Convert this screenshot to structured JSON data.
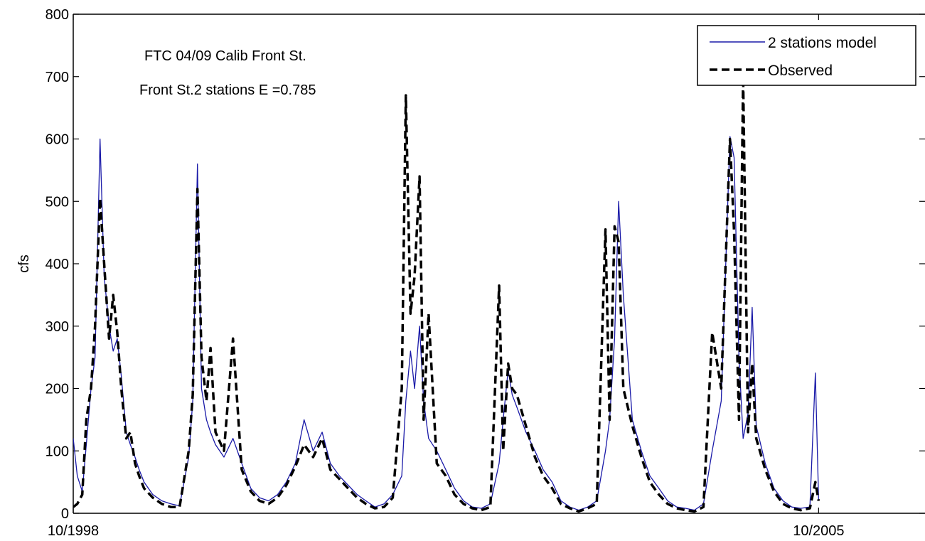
{
  "chart_data": {
    "type": "line",
    "title": "",
    "xlabel": "",
    "ylabel": "cfs",
    "ylim": [
      0,
      800
    ],
    "y_ticks": [
      0,
      100,
      200,
      300,
      400,
      500,
      600,
      700,
      800
    ],
    "x_ticks": [
      {
        "value": "1998-10-01",
        "label": "10/1998"
      },
      {
        "value": "2005-10-01",
        "label": "10/2005"
      }
    ],
    "xlim": [
      "1998-10-01",
      "2006-10-01"
    ],
    "grid": false,
    "legend_position": "top-right",
    "annotations": [
      "FTC 04/09 Calib Front St.",
      "Front St.2 stations E =0.785"
    ],
    "series": [
      {
        "name": "2 stations model",
        "color": "#1a1aa8",
        "style": "solid",
        "points": [
          [
            "1998-10-01",
            120
          ],
          [
            "1998-10-15",
            60
          ],
          [
            "1998-11-01",
            35
          ],
          [
            "1998-11-15",
            110
          ],
          [
            "1998-12-01",
            200
          ],
          [
            "1998-12-15",
            250
          ],
          [
            "1999-01-01",
            600
          ],
          [
            "1999-01-15",
            380
          ],
          [
            "1999-02-01",
            300
          ],
          [
            "1999-02-15",
            260
          ],
          [
            "1999-03-01",
            280
          ],
          [
            "1999-03-15",
            220
          ],
          [
            "1999-04-01",
            130
          ],
          [
            "1999-04-15",
            110
          ],
          [
            "1999-05-01",
            90
          ],
          [
            "1999-05-15",
            70
          ],
          [
            "1999-06-01",
            50
          ],
          [
            "1999-07-01",
            30
          ],
          [
            "1999-08-01",
            20
          ],
          [
            "1999-09-01",
            15
          ],
          [
            "1999-10-01",
            12
          ],
          [
            "1999-11-01",
            90
          ],
          [
            "1999-11-15",
            180
          ],
          [
            "1999-12-01",
            560
          ],
          [
            "1999-12-15",
            200
          ],
          [
            "2000-01-01",
            150
          ],
          [
            "2000-01-15",
            130
          ],
          [
            "2000-02-01",
            110
          ],
          [
            "2000-03-01",
            90
          ],
          [
            "2000-04-01",
            120
          ],
          [
            "2000-05-01",
            80
          ],
          [
            "2000-06-01",
            40
          ],
          [
            "2000-07-01",
            25
          ],
          [
            "2000-08-01",
            20
          ],
          [
            "2000-09-01",
            30
          ],
          [
            "2000-10-01",
            50
          ],
          [
            "2000-11-01",
            80
          ],
          [
            "2000-12-01",
            150
          ],
          [
            "2001-01-01",
            100
          ],
          [
            "2001-02-01",
            130
          ],
          [
            "2001-03-01",
            80
          ],
          [
            "2001-04-01",
            60
          ],
          [
            "2001-05-01",
            45
          ],
          [
            "2001-06-01",
            30
          ],
          [
            "2001-07-01",
            20
          ],
          [
            "2001-08-01",
            10
          ],
          [
            "2001-09-01",
            15
          ],
          [
            "2001-10-01",
            30
          ],
          [
            "2001-11-01",
            60
          ],
          [
            "2001-11-15",
            180
          ],
          [
            "2001-12-01",
            260
          ],
          [
            "2001-12-15",
            200
          ],
          [
            "2002-01-01",
            300
          ],
          [
            "2002-01-15",
            180
          ],
          [
            "2002-02-01",
            120
          ],
          [
            "2002-03-01",
            100
          ],
          [
            "2002-04-01",
            70
          ],
          [
            "2002-05-01",
            40
          ],
          [
            "2002-06-01",
            20
          ],
          [
            "2002-07-01",
            10
          ],
          [
            "2002-08-01",
            8
          ],
          [
            "2002-09-01",
            15
          ],
          [
            "2002-10-01",
            80
          ],
          [
            "2002-10-15",
            150
          ],
          [
            "2002-11-01",
            230
          ],
          [
            "2002-11-15",
            190
          ],
          [
            "2002-12-01",
            170
          ],
          [
            "2003-01-01",
            130
          ],
          [
            "2003-02-01",
            100
          ],
          [
            "2003-03-01",
            70
          ],
          [
            "2003-04-01",
            50
          ],
          [
            "2003-05-01",
            20
          ],
          [
            "2003-06-01",
            10
          ],
          [
            "2003-07-01",
            5
          ],
          [
            "2003-08-01",
            10
          ],
          [
            "2003-09-01",
            20
          ],
          [
            "2003-10-01",
            100
          ],
          [
            "2003-10-15",
            150
          ],
          [
            "2003-11-01",
            280
          ],
          [
            "2003-11-15",
            500
          ],
          [
            "2003-12-01",
            350
          ],
          [
            "2004-01-01",
            150
          ],
          [
            "2004-02-01",
            100
          ],
          [
            "2004-03-01",
            60
          ],
          [
            "2004-04-01",
            40
          ],
          [
            "2004-05-01",
            20
          ],
          [
            "2004-06-01",
            10
          ],
          [
            "2004-07-01",
            8
          ],
          [
            "2004-08-01",
            5
          ],
          [
            "2004-09-01",
            15
          ],
          [
            "2004-10-01",
            100
          ],
          [
            "2004-11-01",
            180
          ],
          [
            "2004-12-01",
            604
          ],
          [
            "2004-12-15",
            570
          ],
          [
            "2005-01-01",
            250
          ],
          [
            "2005-01-15",
            120
          ],
          [
            "2005-02-01",
            160
          ],
          [
            "2005-02-15",
            330
          ],
          [
            "2005-03-01",
            140
          ],
          [
            "2005-04-01",
            80
          ],
          [
            "2005-05-01",
            40
          ],
          [
            "2005-06-01",
            20
          ],
          [
            "2005-07-01",
            10
          ],
          [
            "2005-08-01",
            8
          ],
          [
            "2005-09-01",
            10
          ],
          [
            "2005-09-20",
            225
          ],
          [
            "2005-10-01",
            20
          ]
        ]
      },
      {
        "name": "Observed",
        "color": "#000000",
        "style": "dashed",
        "points": [
          [
            "1998-10-01",
            10
          ],
          [
            "1998-10-15",
            15
          ],
          [
            "1998-11-01",
            30
          ],
          [
            "1998-11-15",
            150
          ],
          [
            "1998-12-01",
            200
          ],
          [
            "1998-12-15",
            300
          ],
          [
            "1999-01-01",
            505
          ],
          [
            "1999-01-15",
            400
          ],
          [
            "1999-02-01",
            280
          ],
          [
            "1999-02-15",
            350
          ],
          [
            "1999-03-01",
            290
          ],
          [
            "1999-03-15",
            200
          ],
          [
            "1999-04-01",
            120
          ],
          [
            "1999-04-15",
            130
          ],
          [
            "1999-05-01",
            80
          ],
          [
            "1999-05-15",
            60
          ],
          [
            "1999-06-01",
            40
          ],
          [
            "1999-07-01",
            25
          ],
          [
            "1999-08-01",
            15
          ],
          [
            "1999-09-01",
            10
          ],
          [
            "1999-10-01",
            10
          ],
          [
            "1999-11-01",
            100
          ],
          [
            "1999-11-15",
            190
          ],
          [
            "1999-12-01",
            520
          ],
          [
            "1999-12-15",
            250
          ],
          [
            "2000-01-01",
            180
          ],
          [
            "2000-01-15",
            265
          ],
          [
            "2000-02-01",
            130
          ],
          [
            "2000-03-01",
            100
          ],
          [
            "2000-04-01",
            280
          ],
          [
            "2000-05-01",
            70
          ],
          [
            "2000-06-01",
            35
          ],
          [
            "2000-07-01",
            20
          ],
          [
            "2000-08-01",
            15
          ],
          [
            "2000-09-01",
            25
          ],
          [
            "2000-10-01",
            45
          ],
          [
            "2000-11-01",
            75
          ],
          [
            "2000-12-01",
            110
          ],
          [
            "2001-01-01",
            90
          ],
          [
            "2001-02-01",
            120
          ],
          [
            "2001-03-01",
            70
          ],
          [
            "2001-04-01",
            55
          ],
          [
            "2001-05-01",
            40
          ],
          [
            "2001-06-01",
            25
          ],
          [
            "2001-07-01",
            15
          ],
          [
            "2001-08-01",
            8
          ],
          [
            "2001-09-01",
            10
          ],
          [
            "2001-10-01",
            25
          ],
          [
            "2001-11-01",
            200
          ],
          [
            "2001-11-15",
            670
          ],
          [
            "2001-12-01",
            320
          ],
          [
            "2001-12-15",
            380
          ],
          [
            "2002-01-01",
            540
          ],
          [
            "2002-01-15",
            150
          ],
          [
            "2002-02-01",
            320
          ],
          [
            "2002-03-01",
            80
          ],
          [
            "2002-04-01",
            60
          ],
          [
            "2002-05-01",
            30
          ],
          [
            "2002-06-01",
            15
          ],
          [
            "2002-07-01",
            8
          ],
          [
            "2002-08-01",
            5
          ],
          [
            "2002-09-01",
            10
          ],
          [
            "2002-10-01",
            365
          ],
          [
            "2002-10-15",
            100
          ],
          [
            "2002-11-01",
            240
          ],
          [
            "2002-11-15",
            200
          ],
          [
            "2002-12-01",
            190
          ],
          [
            "2003-01-01",
            140
          ],
          [
            "2003-02-01",
            90
          ],
          [
            "2003-03-01",
            60
          ],
          [
            "2003-04-01",
            40
          ],
          [
            "2003-05-01",
            15
          ],
          [
            "2003-06-01",
            8
          ],
          [
            "2003-07-01",
            3
          ],
          [
            "2003-08-01",
            8
          ],
          [
            "2003-09-01",
            15
          ],
          [
            "2003-10-01",
            455
          ],
          [
            "2003-10-15",
            150
          ],
          [
            "2003-11-01",
            460
          ],
          [
            "2003-11-15",
            435
          ],
          [
            "2003-12-01",
            200
          ],
          [
            "2004-01-01",
            140
          ],
          [
            "2004-02-01",
            90
          ],
          [
            "2004-03-01",
            50
          ],
          [
            "2004-04-01",
            30
          ],
          [
            "2004-05-01",
            15
          ],
          [
            "2004-06-01",
            8
          ],
          [
            "2004-07-01",
            5
          ],
          [
            "2004-08-01",
            3
          ],
          [
            "2004-09-01",
            10
          ],
          [
            "2004-10-01",
            290
          ],
          [
            "2004-11-01",
            200
          ],
          [
            "2004-12-01",
            600
          ],
          [
            "2004-12-15",
            450
          ],
          [
            "2005-01-01",
            150
          ],
          [
            "2005-01-15",
            700
          ],
          [
            "2005-02-01",
            130
          ],
          [
            "2005-02-15",
            240
          ],
          [
            "2005-03-01",
            120
          ],
          [
            "2005-04-01",
            70
          ],
          [
            "2005-05-01",
            35
          ],
          [
            "2005-06-01",
            15
          ],
          [
            "2005-07-01",
            8
          ],
          [
            "2005-08-01",
            5
          ],
          [
            "2005-09-01",
            8
          ],
          [
            "2005-09-20",
            50
          ],
          [
            "2005-10-01",
            20
          ]
        ]
      }
    ]
  }
}
